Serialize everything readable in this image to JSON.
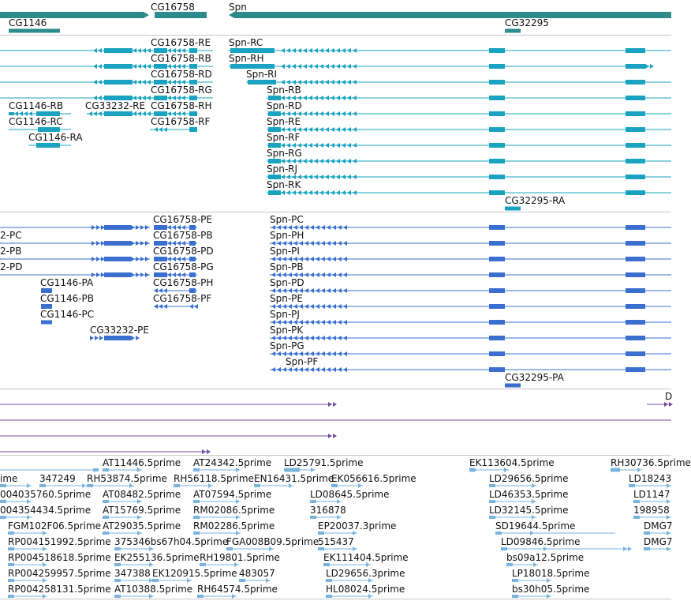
{
  "colors": {
    "gene": "#2e8b8b",
    "transcript": "#1aa3c0",
    "protein": "#3a6fd0",
    "aligned_purple": "#6f4fa0",
    "est": "#7ab3dc",
    "separator": "#c8c8c8"
  },
  "tracks": {
    "genes": {
      "labels": [
        "CG16758",
        "Spn",
        "CG1146",
        "CG32295"
      ]
    },
    "transcripts": {
      "labels": [
        "CG16758-RE",
        "Spn-RC",
        "CG16758-RB",
        "Spn-RH",
        "CG16758-RD",
        "Spn-RI",
        "CG16758-RG",
        "Spn-RB",
        "CG1146-RB",
        "CG33232-RE",
        "CG16758-RH",
        "Spn-RD",
        "CG1146-RC",
        "CG16758-RF",
        "Spn-RE",
        "CG1146-RA",
        "Spn-RF",
        "Spn-RG",
        "Spn-RJ",
        "Spn-RK",
        "CG32295-RA"
      ]
    },
    "proteins": {
      "labels": [
        "CG16758-PE",
        "Spn-PC",
        "2-PC",
        "CG16758-PB",
        "Spn-PH",
        "2-PB",
        "CG16758-PD",
        "Spn-PI",
        "2-PD",
        "CG16758-PG",
        "Spn-PB",
        "CG1146-PA",
        "CG16758-PH",
        "Spn-PD",
        "CG1146-PB",
        "CG16758-PF",
        "Spn-PE",
        "CG1146-PC",
        "Spn-PJ",
        "CG33232-PE",
        "Spn-PK",
        "Spn-PG",
        "Spn-PF",
        "CG32295-PA"
      ]
    },
    "aligned": {
      "labels": [
        "D"
      ]
    },
    "ests": {
      "labels": [
        "AT11446.5prime",
        "AT24342.5prime",
        "LD25791.5prime",
        "EK113604.5prime",
        "RH30736.5prime",
        "ime",
        "347249",
        "RH53874.5prime",
        "RH56118.5prime",
        "EN16431.5prime",
        "EK056616.5prime",
        "LD29656.5prime",
        "LD18243",
        "004035760.5prime",
        "AT08482.5prime",
        "AT07594.5prime",
        "LD08645.5prime",
        "LD46353.5prime",
        "LD1147",
        "004354434.5prime",
        "AT15769.5prime",
        "RM02086.5prime",
        "316878",
        "LD32145.5prime",
        "198958",
        "FGM102F06.5prime",
        "AT29035.5prime",
        "RM02286.5prime",
        "EP20037.3prime",
        "SD19644.5prime",
        "DMG7",
        "RP004151992.5prime",
        "375346bs67h04.5prime",
        "FGA008B09.5prime",
        "515437",
        "LD09846.5prime",
        "DMG7",
        "RP004518618.5prime",
        "EK255136.5prime",
        "RH19801.5prime",
        "EK111404.5prime",
        "bs09a12.5prime",
        "RP004259957.5prime",
        "347388",
        "EK120915.5prime",
        "483057",
        "LD29656.3prime",
        "LP18018.5prime",
        "RP004258131.5prime",
        "AT10388.5prime",
        "RH64574.5prime",
        "HL08024.5prime",
        "bs30h05.5prime"
      ]
    }
  }
}
